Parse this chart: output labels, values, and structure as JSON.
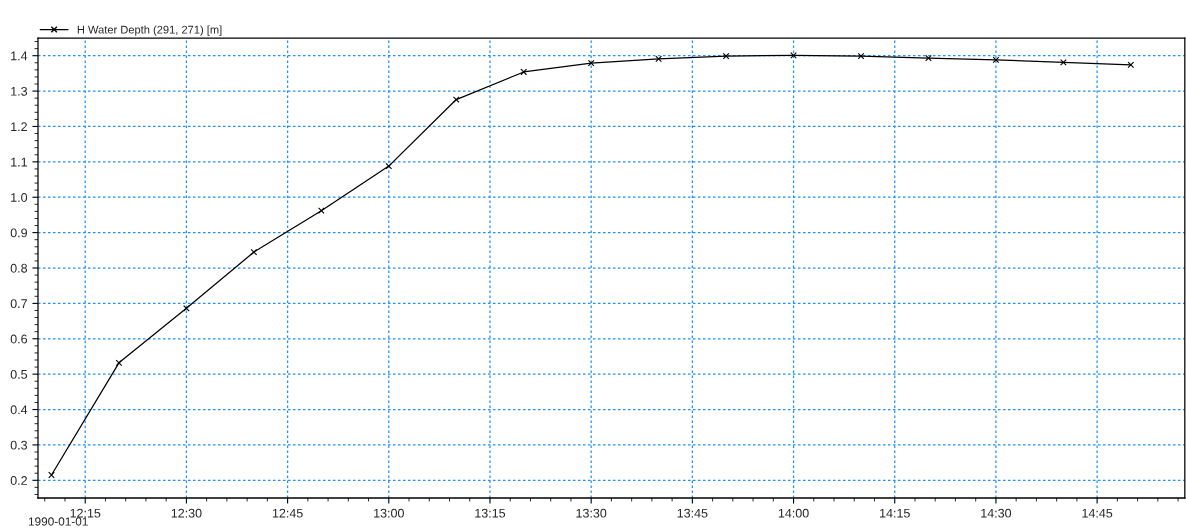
{
  "chart_data": {
    "type": "line",
    "x": [
      12.1666667,
      12.3333333,
      12.5,
      12.6666667,
      12.8333333,
      13.0,
      13.1666667,
      13.3333333,
      13.5,
      13.6666667,
      13.8333333,
      14.0,
      14.1666667,
      14.3333333,
      14.5,
      14.6666667,
      14.8333333
    ],
    "series": [
      {
        "name": "H Water Depth (291, 271) [m]",
        "color": "#000000",
        "values": [
          0.215,
          0.532,
          0.686,
          0.845,
          0.962,
          1.088,
          1.276,
          1.354,
          1.379,
          1.391,
          1.399,
          1.401,
          1.399,
          1.393,
          1.388,
          1.381,
          1.374
        ]
      }
    ],
    "xlim": [
      12.1333333,
      14.9666667
    ],
    "xticks": [
      {
        "value": 12.25,
        "label": "12:15"
      },
      {
        "value": 12.5,
        "label": "12:30"
      },
      {
        "value": 12.75,
        "label": "12:45"
      },
      {
        "value": 13.0,
        "label": "13:00"
      },
      {
        "value": 13.25,
        "label": "13:15"
      },
      {
        "value": 13.5,
        "label": "13:30"
      },
      {
        "value": 13.75,
        "label": "13:45"
      },
      {
        "value": 14.0,
        "label": "14:00"
      },
      {
        "value": 14.25,
        "label": "14:15"
      },
      {
        "value": 14.5,
        "label": "14:30"
      },
      {
        "value": 14.75,
        "label": "14:45"
      }
    ],
    "ylim": [
      0.15,
      1.45
    ],
    "yticks": [
      {
        "value": 0.2,
        "label": "0.2"
      },
      {
        "value": 0.3,
        "label": "0.3"
      },
      {
        "value": 0.4,
        "label": "0.4"
      },
      {
        "value": 0.5,
        "label": "0.5"
      },
      {
        "value": 0.6,
        "label": "0.6"
      },
      {
        "value": 0.7,
        "label": "0.7"
      },
      {
        "value": 0.8,
        "label": "0.8"
      },
      {
        "value": 0.9,
        "label": "0.9"
      },
      {
        "value": 1.0,
        "label": "1.0"
      },
      {
        "value": 1.1,
        "label": "1.1"
      },
      {
        "value": 1.2,
        "label": "1.2"
      },
      {
        "value": 1.3,
        "label": "1.3"
      },
      {
        "value": 1.4,
        "label": "1.4"
      }
    ],
    "grid": true,
    "legend": "top left",
    "marker": "cross",
    "line_style": "solid",
    "annotations": [
      "1990-01-01"
    ]
  }
}
